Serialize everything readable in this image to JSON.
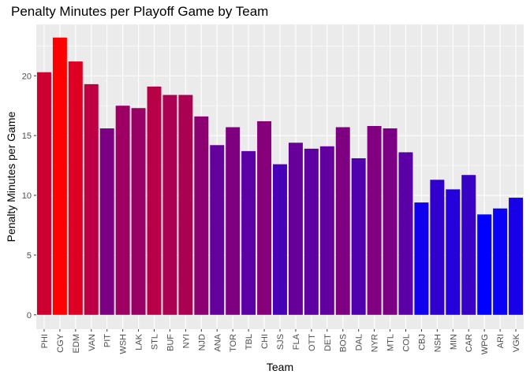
{
  "chart_data": {
    "type": "bar",
    "title": "Penalty Minutes per Playoff Game by Team",
    "xlabel": "Team",
    "ylabel": "Penalty Minutes per Game",
    "ylim": [
      -1.2,
      24.3
    ],
    "yticks": [
      0,
      5,
      10,
      15,
      20
    ],
    "grid": true,
    "legend": "none",
    "categories": [
      "PHI",
      "CGY",
      "EDM",
      "VAN",
      "PIT",
      "WSH",
      "LAK",
      "STL",
      "BUF",
      "NYI",
      "NJD",
      "ANA",
      "TOR",
      "TBL",
      "CHI",
      "SJS",
      "FLA",
      "OTT",
      "DET",
      "BOS",
      "DAL",
      "NYR",
      "MTL",
      "COL",
      "CBJ",
      "NSH",
      "MIN",
      "CAR",
      "WPG",
      "ARI",
      "VGK"
    ],
    "values": [
      20.3,
      23.2,
      21.2,
      19.3,
      15.6,
      17.5,
      17.3,
      19.1,
      18.4,
      18.4,
      16.6,
      14.2,
      15.7,
      13.7,
      16.2,
      12.6,
      14.4,
      13.9,
      14.1,
      15.7,
      13.1,
      15.8,
      15.6,
      13.6,
      9.4,
      11.3,
      10.5,
      11.7,
      8.4,
      8.9,
      9.8
    ],
    "color_scale": {
      "low": "#0000ff",
      "high": "#ff0000"
    },
    "panel_color": "#ebebeb",
    "grid_color": "#ffffff"
  }
}
